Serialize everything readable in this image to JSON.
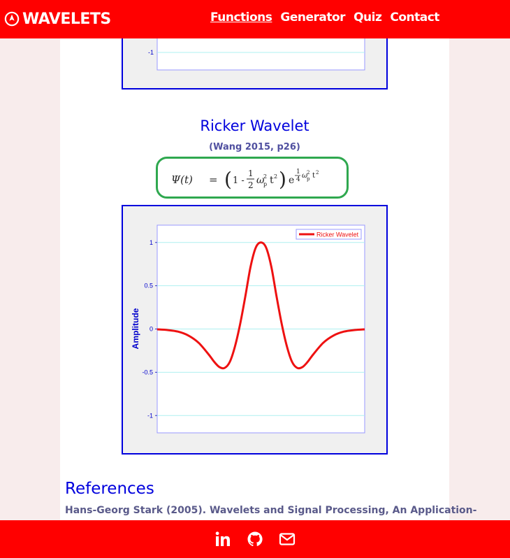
{
  "header": {
    "brand": "WAVELETS",
    "brand_icon": "compass-icon",
    "nav": [
      {
        "label": "Functions",
        "active": true
      },
      {
        "label": "Generator",
        "active": false
      },
      {
        "label": "Quiz",
        "active": false
      },
      {
        "label": "Contact",
        "active": false
      }
    ]
  },
  "top_plot": {
    "y_tick": "-1"
  },
  "wavelet": {
    "title": "Ricker Wavelet",
    "source": "(Wang 2015, p26)",
    "formula_psi": "Ψ(t)",
    "formula_eq": "=",
    "formula_one_minus": "1 -",
    "formula_half_num": "1",
    "formula_half_den": "2",
    "formula_omega": "ω",
    "formula_sub": "p",
    "formula_sup": "2",
    "formula_t": "t",
    "formula_e": "e",
    "formula_quarter_num": "1",
    "formula_quarter_den": "4"
  },
  "chart_data": {
    "type": "line",
    "title": "",
    "xlabel": "",
    "ylabel": "Amplitude",
    "ylim": [
      -1.2,
      1.2
    ],
    "xlim": [
      -1,
      1
    ],
    "y_ticks": [
      "1",
      "0.5",
      "0",
      "-0.5",
      "-1"
    ],
    "y_tick_values": [
      1,
      0.5,
      0,
      -0.5,
      -1
    ],
    "grid": true,
    "legend": "top-right",
    "series": [
      {
        "name": "Ricker Wavelet",
        "color": "#ee1111",
        "x": [
          -1.0,
          -0.9,
          -0.8,
          -0.7,
          -0.6,
          -0.5,
          -0.45,
          -0.4,
          -0.35,
          -0.3,
          -0.25,
          -0.2,
          -0.15,
          -0.1,
          -0.05,
          0.0,
          0.05,
          0.1,
          0.15,
          0.2,
          0.25,
          0.3,
          0.35,
          0.4,
          0.45,
          0.5,
          0.6,
          0.7,
          0.8,
          0.9,
          1.0
        ],
        "y": [
          -0.004,
          -0.012,
          -0.03,
          -0.075,
          -0.16,
          -0.3,
          -0.38,
          -0.44,
          -0.45,
          -0.38,
          -0.2,
          0.06,
          0.38,
          0.72,
          0.94,
          1.0,
          0.94,
          0.72,
          0.38,
          0.06,
          -0.2,
          -0.38,
          -0.45,
          -0.44,
          -0.38,
          -0.3,
          -0.16,
          -0.075,
          -0.03,
          -0.012,
          -0.004
        ]
      }
    ]
  },
  "references": {
    "heading": "References",
    "text": "Hans-Georg Stark (2005). Wavelets and Signal Processing, An Application-"
  },
  "footer": {
    "icons": [
      "linkedin-icon",
      "github-icon",
      "mail-icon"
    ]
  },
  "colors": {
    "primary": "#ff0000",
    "title_blue": "#0000dd",
    "formula_border": "#2fa84f"
  }
}
